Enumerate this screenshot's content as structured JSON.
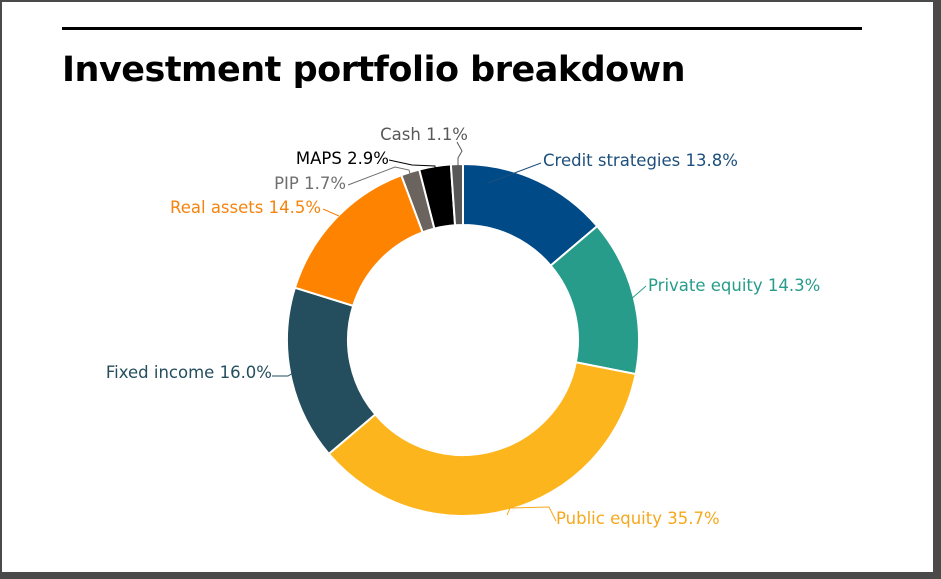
{
  "title": "Investment portfolio breakdown",
  "chart_data": {
    "type": "pie",
    "style": "donut",
    "title": "Investment portfolio breakdown",
    "slices": [
      {
        "label": "Credit strategies",
        "value": 13.8,
        "display": "Credit strategies 13.8%",
        "color": "#004a87"
      },
      {
        "label": "Private equity",
        "value": 14.3,
        "display": "Private equity 14.3%",
        "color": "#279c8a"
      },
      {
        "label": "Public equity",
        "value": 35.7,
        "display": "Public equity 35.7%",
        "color": "#fdb51d"
      },
      {
        "label": "Fixed income",
        "value": 16.0,
        "display": "Fixed income 16.0%",
        "color": "#244e5e"
      },
      {
        "label": "Real assets",
        "value": 14.5,
        "display": "Real assets 14.5%",
        "color": "#fd8300"
      },
      {
        "label": "PIP",
        "value": 1.7,
        "display": "PIP 1.7%",
        "color": "#6b635e"
      },
      {
        "label": "MAPS",
        "value": 2.9,
        "display": "MAPS 2.9%",
        "color": "#000000"
      },
      {
        "label": "Cash",
        "value": 1.1,
        "display": "Cash 1.1%",
        "color": "#585858"
      }
    ],
    "label_colors": {
      "Credit strategies": "#1d4f7c",
      "Private equity": "#279c8a",
      "Public equity": "#f6a81c",
      "Fixed income": "#244e5e",
      "Real assets": "#f6830c",
      "PIP": "#6f6f6f",
      "MAPS": "#000000",
      "Cash": "#585858"
    },
    "legend": "none"
  }
}
